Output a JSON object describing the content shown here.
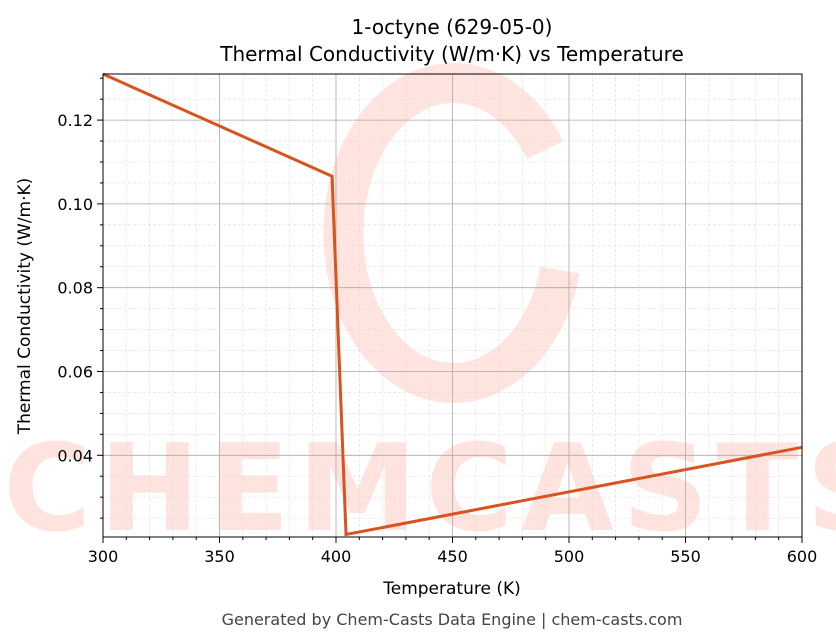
{
  "chart_data": {
    "type": "line",
    "title": "1-octyne (629-05-0)",
    "subtitle": "Thermal Conductivity (W/m·K) vs Temperature",
    "xlabel": "Temperature (K)",
    "ylabel": "Thermal Conductivity (W/m·K)",
    "xlim": [
      300,
      600
    ],
    "ylim": [
      0.0205,
      0.131
    ],
    "xticks": [
      300,
      350,
      400,
      450,
      500,
      550,
      600
    ],
    "yticks": [
      0.04,
      0.06,
      0.08,
      0.1,
      0.12
    ],
    "ytick_labels": [
      "0.04",
      "0.06",
      "0.08",
      "0.10",
      "0.12"
    ],
    "grid": true,
    "series": [
      {
        "color": "#d9531e",
        "x": [
          300,
          398.3,
          404.3,
          600
        ],
        "y": [
          0.131,
          0.1066,
          0.0211,
          0.0419
        ]
      }
    ]
  },
  "watermark": "CHEMCASTS",
  "footer": "Generated by Chem-Casts Data Engine | chem-casts.com"
}
